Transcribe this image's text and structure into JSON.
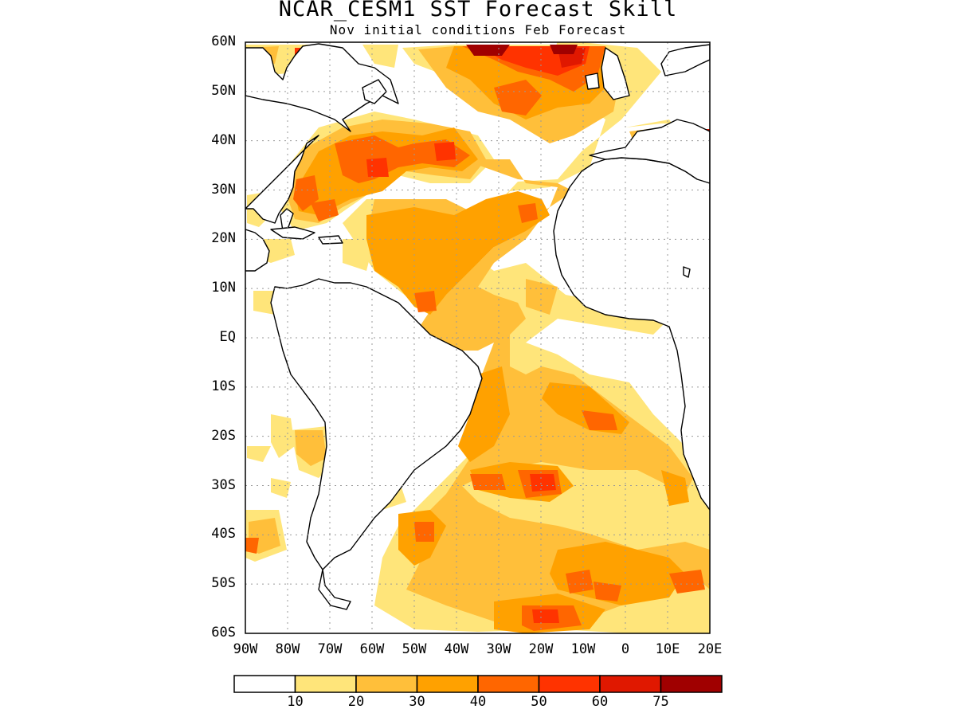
{
  "title": "NCAR_CESM1 SST Forecast Skill",
  "subtitle": "Nov initial conditions  Feb Forecast",
  "map": {
    "region": "Atlantic Ocean",
    "lon_range": [
      -90,
      20
    ],
    "lat_range": [
      -60,
      60
    ],
    "grid": true,
    "lat_labels": [
      "60N",
      "50N",
      "40N",
      "30N",
      "20N",
      "10N",
      "EQ",
      "10S",
      "20S",
      "30S",
      "40S",
      "50S",
      "60S"
    ],
    "lon_labels": [
      "90W",
      "80W",
      "70W",
      "60W",
      "50W",
      "40W",
      "30W",
      "20W",
      "10W",
      "0",
      "10E",
      "20E"
    ]
  },
  "colorbar": {
    "colors": [
      "#ffffff",
      "#ffe57a",
      "#ffbf3a",
      "#ffa100",
      "#ff6600",
      "#ff3300",
      "#e01800",
      "#a00000"
    ],
    "labels": [
      "10",
      "20",
      "30",
      "40",
      "50",
      "60",
      "75"
    ]
  }
}
